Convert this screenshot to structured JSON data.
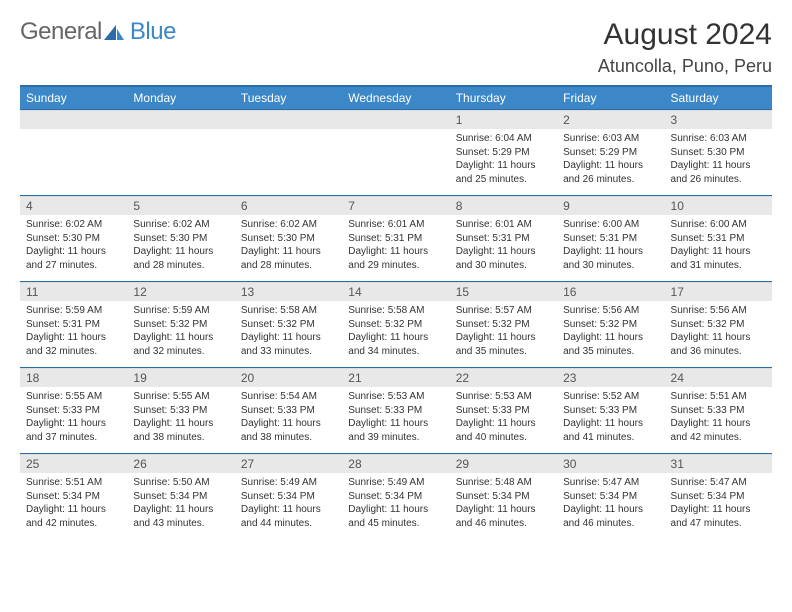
{
  "logo": {
    "part1": "General",
    "part2": "Blue"
  },
  "title": "August 2024",
  "location": "Atuncolla, Puno, Peru",
  "colors": {
    "header_bg": "#3b87c8",
    "header_border": "#2a6ca8",
    "daynum_bg": "#e8e8e8",
    "text": "#333333",
    "logo_gray": "#666666",
    "logo_blue": "#3b87c8"
  },
  "typography": {
    "title_fontsize": 30,
    "location_fontsize": 18,
    "dayheader_fontsize": 12,
    "cell_fontsize": 10
  },
  "day_headers": [
    "Sunday",
    "Monday",
    "Tuesday",
    "Wednesday",
    "Thursday",
    "Friday",
    "Saturday"
  ],
  "weeks": [
    [
      {
        "n": "",
        "lines": []
      },
      {
        "n": "",
        "lines": []
      },
      {
        "n": "",
        "lines": []
      },
      {
        "n": "",
        "lines": []
      },
      {
        "n": "1",
        "lines": [
          "Sunrise: 6:04 AM",
          "Sunset: 5:29 PM",
          "Daylight: 11 hours and 25 minutes."
        ]
      },
      {
        "n": "2",
        "lines": [
          "Sunrise: 6:03 AM",
          "Sunset: 5:29 PM",
          "Daylight: 11 hours and 26 minutes."
        ]
      },
      {
        "n": "3",
        "lines": [
          "Sunrise: 6:03 AM",
          "Sunset: 5:30 PM",
          "Daylight: 11 hours and 26 minutes."
        ]
      }
    ],
    [
      {
        "n": "4",
        "lines": [
          "Sunrise: 6:02 AM",
          "Sunset: 5:30 PM",
          "Daylight: 11 hours and 27 minutes."
        ]
      },
      {
        "n": "5",
        "lines": [
          "Sunrise: 6:02 AM",
          "Sunset: 5:30 PM",
          "Daylight: 11 hours and 28 minutes."
        ]
      },
      {
        "n": "6",
        "lines": [
          "Sunrise: 6:02 AM",
          "Sunset: 5:30 PM",
          "Daylight: 11 hours and 28 minutes."
        ]
      },
      {
        "n": "7",
        "lines": [
          "Sunrise: 6:01 AM",
          "Sunset: 5:31 PM",
          "Daylight: 11 hours and 29 minutes."
        ]
      },
      {
        "n": "8",
        "lines": [
          "Sunrise: 6:01 AM",
          "Sunset: 5:31 PM",
          "Daylight: 11 hours and 30 minutes."
        ]
      },
      {
        "n": "9",
        "lines": [
          "Sunrise: 6:00 AM",
          "Sunset: 5:31 PM",
          "Daylight: 11 hours and 30 minutes."
        ]
      },
      {
        "n": "10",
        "lines": [
          "Sunrise: 6:00 AM",
          "Sunset: 5:31 PM",
          "Daylight: 11 hours and 31 minutes."
        ]
      }
    ],
    [
      {
        "n": "11",
        "lines": [
          "Sunrise: 5:59 AM",
          "Sunset: 5:31 PM",
          "Daylight: 11 hours and 32 minutes."
        ]
      },
      {
        "n": "12",
        "lines": [
          "Sunrise: 5:59 AM",
          "Sunset: 5:32 PM",
          "Daylight: 11 hours and 32 minutes."
        ]
      },
      {
        "n": "13",
        "lines": [
          "Sunrise: 5:58 AM",
          "Sunset: 5:32 PM",
          "Daylight: 11 hours and 33 minutes."
        ]
      },
      {
        "n": "14",
        "lines": [
          "Sunrise: 5:58 AM",
          "Sunset: 5:32 PM",
          "Daylight: 11 hours and 34 minutes."
        ]
      },
      {
        "n": "15",
        "lines": [
          "Sunrise: 5:57 AM",
          "Sunset: 5:32 PM",
          "Daylight: 11 hours and 35 minutes."
        ]
      },
      {
        "n": "16",
        "lines": [
          "Sunrise: 5:56 AM",
          "Sunset: 5:32 PM",
          "Daylight: 11 hours and 35 minutes."
        ]
      },
      {
        "n": "17",
        "lines": [
          "Sunrise: 5:56 AM",
          "Sunset: 5:32 PM",
          "Daylight: 11 hours and 36 minutes."
        ]
      }
    ],
    [
      {
        "n": "18",
        "lines": [
          "Sunrise: 5:55 AM",
          "Sunset: 5:33 PM",
          "Daylight: 11 hours and 37 minutes."
        ]
      },
      {
        "n": "19",
        "lines": [
          "Sunrise: 5:55 AM",
          "Sunset: 5:33 PM",
          "Daylight: 11 hours and 38 minutes."
        ]
      },
      {
        "n": "20",
        "lines": [
          "Sunrise: 5:54 AM",
          "Sunset: 5:33 PM",
          "Daylight: 11 hours and 38 minutes."
        ]
      },
      {
        "n": "21",
        "lines": [
          "Sunrise: 5:53 AM",
          "Sunset: 5:33 PM",
          "Daylight: 11 hours and 39 minutes."
        ]
      },
      {
        "n": "22",
        "lines": [
          "Sunrise: 5:53 AM",
          "Sunset: 5:33 PM",
          "Daylight: 11 hours and 40 minutes."
        ]
      },
      {
        "n": "23",
        "lines": [
          "Sunrise: 5:52 AM",
          "Sunset: 5:33 PM",
          "Daylight: 11 hours and 41 minutes."
        ]
      },
      {
        "n": "24",
        "lines": [
          "Sunrise: 5:51 AM",
          "Sunset: 5:33 PM",
          "Daylight: 11 hours and 42 minutes."
        ]
      }
    ],
    [
      {
        "n": "25",
        "lines": [
          "Sunrise: 5:51 AM",
          "Sunset: 5:34 PM",
          "Daylight: 11 hours and 42 minutes."
        ]
      },
      {
        "n": "26",
        "lines": [
          "Sunrise: 5:50 AM",
          "Sunset: 5:34 PM",
          "Daylight: 11 hours and 43 minutes."
        ]
      },
      {
        "n": "27",
        "lines": [
          "Sunrise: 5:49 AM",
          "Sunset: 5:34 PM",
          "Daylight: 11 hours and 44 minutes."
        ]
      },
      {
        "n": "28",
        "lines": [
          "Sunrise: 5:49 AM",
          "Sunset: 5:34 PM",
          "Daylight: 11 hours and 45 minutes."
        ]
      },
      {
        "n": "29",
        "lines": [
          "Sunrise: 5:48 AM",
          "Sunset: 5:34 PM",
          "Daylight: 11 hours and 46 minutes."
        ]
      },
      {
        "n": "30",
        "lines": [
          "Sunrise: 5:47 AM",
          "Sunset: 5:34 PM",
          "Daylight: 11 hours and 46 minutes."
        ]
      },
      {
        "n": "31",
        "lines": [
          "Sunrise: 5:47 AM",
          "Sunset: 5:34 PM",
          "Daylight: 11 hours and 47 minutes."
        ]
      }
    ]
  ]
}
